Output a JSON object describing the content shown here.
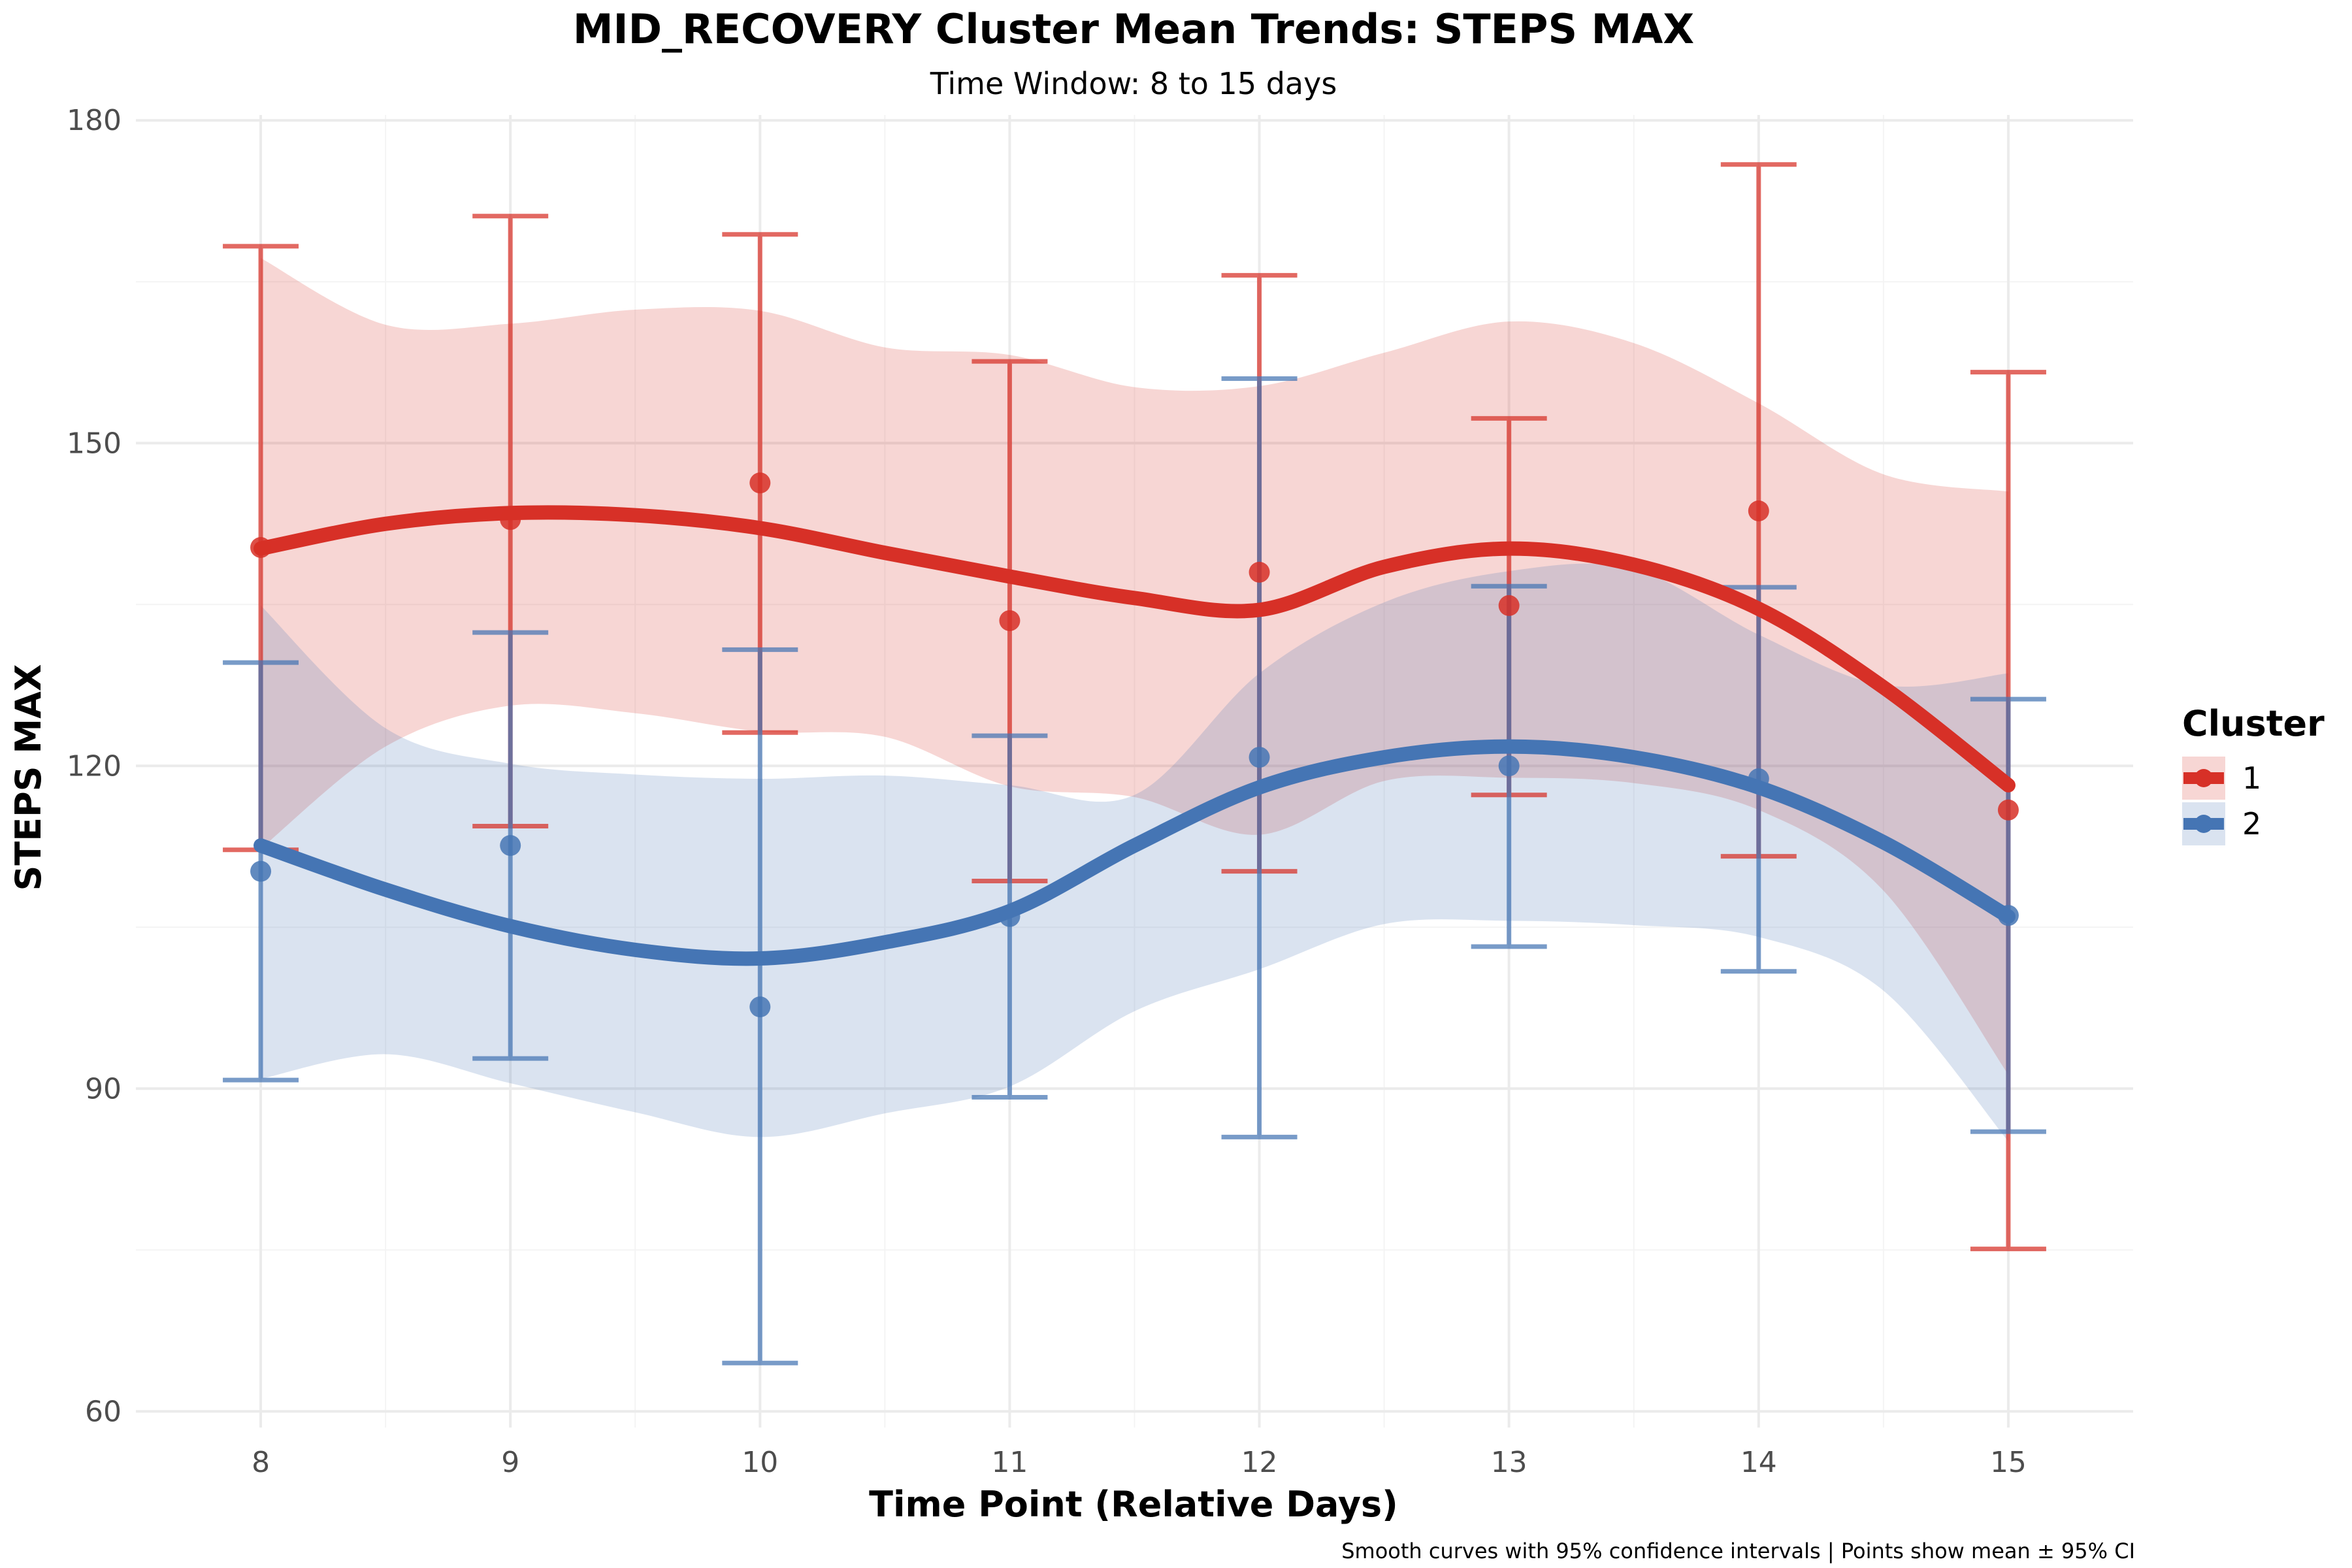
{
  "chart_data": {
    "type": "line",
    "title": "MID_RECOVERY Cluster Mean Trends: STEPS MAX",
    "subtitle": "Time Window: 8 to 15 days",
    "xlabel": "Time Point (Relative Days)",
    "ylabel": "STEPS MAX",
    "caption": "Smooth curves with 95% confidence intervals | Points show mean ± 95% CI",
    "xlim": [
      7.5,
      15.5
    ],
    "ylim": [
      58.5,
      180.5
    ],
    "x_ticks": [
      8,
      9,
      10,
      11,
      12,
      13,
      14,
      15
    ],
    "y_ticks": [
      60,
      90,
      120,
      150,
      180
    ],
    "grid": true,
    "legend": {
      "title": "Cluster",
      "position": "right"
    },
    "series": [
      {
        "name": "1",
        "color": "#d73027",
        "x": [
          8,
          9,
          10,
          11,
          12,
          13,
          14,
          15
        ],
        "mean": [
          140.3,
          142.9,
          146.3,
          133.5,
          138.0,
          134.9,
          143.7,
          115.9
        ],
        "ci_lower": [
          112.2,
          114.4,
          123.1,
          109.3,
          110.2,
          117.3,
          111.6,
          75.1
        ],
        "ci_upper": [
          168.3,
          171.1,
          169.4,
          157.6,
          165.6,
          152.3,
          175.9,
          156.6
        ],
        "smooth": {
          "x": [
            8,
            8.5,
            9,
            9.5,
            10,
            10.5,
            11,
            11.5,
            12,
            12.5,
            13,
            13.5,
            14,
            14.5,
            15
          ],
          "y": [
            140.2,
            142.5,
            143.5,
            143.3,
            142.1,
            139.8,
            137.6,
            135.6,
            134.5,
            138.5,
            140.2,
            138.7,
            134.6,
            127.3,
            118.2
          ],
          "lower": [
            112.3,
            121.8,
            125.6,
            124.9,
            123.2,
            122.7,
            118.1,
            117.1,
            113.6,
            118.6,
            118.9,
            118.4,
            115.9,
            108.4,
            91.3
          ],
          "upper": [
            167.2,
            161.0,
            161.1,
            162.4,
            162.3,
            158.9,
            158.2,
            155.2,
            155.3,
            158.4,
            161.3,
            159.3,
            153.7,
            147.1,
            145.5
          ]
        }
      },
      {
        "name": "2",
        "color": "#4575b4",
        "x": [
          8,
          9,
          10,
          11,
          12,
          13,
          14,
          15
        ],
        "mean": [
          110.2,
          112.6,
          97.6,
          106.0,
          120.8,
          120.0,
          118.8,
          106.1
        ],
        "ci_lower": [
          90.8,
          92.8,
          64.5,
          89.2,
          85.5,
          103.2,
          100.9,
          86.0
        ],
        "ci_upper": [
          129.6,
          132.4,
          130.8,
          122.8,
          156.0,
          136.7,
          136.6,
          126.2
        ],
        "smooth": {
          "x": [
            8,
            8.5,
            9,
            9.5,
            10,
            10.5,
            11,
            11.5,
            12,
            12.5,
            13,
            13.5,
            14,
            14.5,
            15
          ],
          "y": [
            112.6,
            108.5,
            105.1,
            102.9,
            102.1,
            103.6,
            106.5,
            112.6,
            118.0,
            120.8,
            121.8,
            120.8,
            118.0,
            112.9,
            106.0
          ],
          "lower": [
            90.9,
            93.2,
            90.5,
            87.8,
            85.5,
            87.7,
            90.2,
            97.2,
            101.1,
            105.3,
            105.6,
            105.2,
            104.1,
            99.1,
            85.1
          ],
          "upper": [
            134.9,
            123.5,
            120.2,
            119.2,
            118.8,
            119.1,
            118.2,
            117.3,
            128.6,
            135.2,
            138.1,
            138.3,
            132.2,
            127.5,
            128.6
          ]
        }
      }
    ]
  }
}
